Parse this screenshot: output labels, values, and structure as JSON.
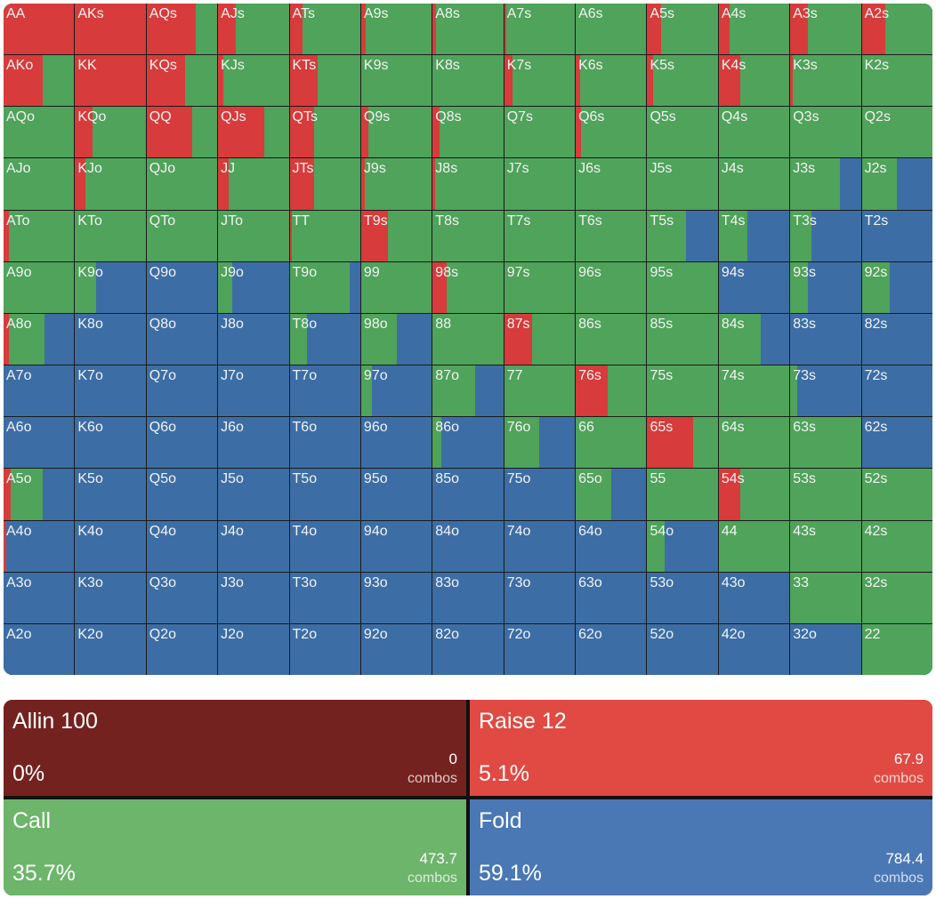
{
  "colors": {
    "raise": "#d73b3b",
    "call": "#4fa35a",
    "fold": "#3c6ea5",
    "allin": "#74221f",
    "raise_panel": "#e04a43",
    "call_panel": "#6db56a",
    "fold_panel": "#4a78b5"
  },
  "grid": [
    [
      {
        "h": "AA",
        "r": 1,
        "c": 0
      },
      {
        "h": "AKs",
        "r": 1,
        "c": 0
      },
      {
        "h": "AQs",
        "r": 0.7,
        "c": 0.3
      },
      {
        "h": "AJs",
        "r": 0.25,
        "c": 0.75
      },
      {
        "h": "ATs",
        "r": 0.18,
        "c": 0.82
      },
      {
        "h": "A9s",
        "r": 0.06,
        "c": 0.94
      },
      {
        "h": "A8s",
        "r": 0.05,
        "c": 0.95
      },
      {
        "h": "A7s",
        "r": 0.03,
        "c": 0.97
      },
      {
        "h": "A6s",
        "r": 0,
        "c": 1
      },
      {
        "h": "A5s",
        "r": 0.2,
        "c": 0.8
      },
      {
        "h": "A4s",
        "r": 0.15,
        "c": 0.85
      },
      {
        "h": "A3s",
        "r": 0.25,
        "c": 0.75
      },
      {
        "h": "A2s",
        "r": 0.33,
        "c": 0.67
      }
    ],
    [
      {
        "h": "AKo",
        "r": 0.55,
        "c": 0.45
      },
      {
        "h": "KK",
        "r": 1,
        "c": 0
      },
      {
        "h": "KQs",
        "r": 0.55,
        "c": 0.45
      },
      {
        "h": "KJs",
        "r": 0.08,
        "c": 0.92
      },
      {
        "h": "KTs",
        "r": 0.4,
        "c": 0.6
      },
      {
        "h": "K9s",
        "r": 0,
        "c": 1
      },
      {
        "h": "K8s",
        "r": 0,
        "c": 1
      },
      {
        "h": "K7s",
        "r": 0.12,
        "c": 0.88
      },
      {
        "h": "K6s",
        "r": 0.06,
        "c": 0.94
      },
      {
        "h": "K5s",
        "r": 0.08,
        "c": 0.92
      },
      {
        "h": "K4s",
        "r": 0.3,
        "c": 0.7
      },
      {
        "h": "K3s",
        "r": 0.03,
        "c": 0.97
      },
      {
        "h": "K2s",
        "r": 0,
        "c": 1
      }
    ],
    [
      {
        "h": "AQo",
        "r": 0,
        "c": 1
      },
      {
        "h": "KQo",
        "r": 0.25,
        "c": 0.75
      },
      {
        "h": "QQ",
        "r": 0.65,
        "c": 0.35
      },
      {
        "h": "QJs",
        "r": 0.65,
        "c": 0.35
      },
      {
        "h": "QTs",
        "r": 0.35,
        "c": 0.65
      },
      {
        "h": "Q9s",
        "r": 0.1,
        "c": 0.9
      },
      {
        "h": "Q8s",
        "r": 0.1,
        "c": 0.9
      },
      {
        "h": "Q7s",
        "r": 0,
        "c": 1
      },
      {
        "h": "Q6s",
        "r": 0.08,
        "c": 0.92
      },
      {
        "h": "Q5s",
        "r": 0,
        "c": 1
      },
      {
        "h": "Q4s",
        "r": 0,
        "c": 1
      },
      {
        "h": "Q3s",
        "r": 0,
        "c": 1
      },
      {
        "h": "Q2s",
        "r": 0,
        "c": 1
      }
    ],
    [
      {
        "h": "AJo",
        "r": 0,
        "c": 1
      },
      {
        "h": "KJo",
        "r": 0.15,
        "c": 0.85
      },
      {
        "h": "QJo",
        "r": 0,
        "c": 1
      },
      {
        "h": "JJ",
        "r": 0.15,
        "c": 0.85
      },
      {
        "h": "JTs",
        "r": 0.35,
        "c": 0.65
      },
      {
        "h": "J9s",
        "r": 0.05,
        "c": 0.95
      },
      {
        "h": "J8s",
        "r": 0.03,
        "c": 0.97
      },
      {
        "h": "J7s",
        "r": 0,
        "c": 1
      },
      {
        "h": "J6s",
        "r": 0,
        "c": 1
      },
      {
        "h": "J5s",
        "r": 0,
        "c": 1
      },
      {
        "h": "J4s",
        "r": 0,
        "c": 1
      },
      {
        "h": "J3s",
        "r": 0,
        "c": 0.7
      },
      {
        "h": "J2s",
        "r": 0,
        "c": 0.5
      }
    ],
    [
      {
        "h": "ATo",
        "r": 0.07,
        "c": 0.93
      },
      {
        "h": "KTo",
        "r": 0,
        "c": 1
      },
      {
        "h": "QTo",
        "r": 0,
        "c": 1
      },
      {
        "h": "JTo",
        "r": 0,
        "c": 1
      },
      {
        "h": "TT",
        "r": 0.03,
        "c": 0.97
      },
      {
        "h": "T9s",
        "r": 0.38,
        "c": 0.62
      },
      {
        "h": "T8s",
        "r": 0,
        "c": 1
      },
      {
        "h": "T7s",
        "r": 0,
        "c": 1
      },
      {
        "h": "T6s",
        "r": 0,
        "c": 1
      },
      {
        "h": "T5s",
        "r": 0,
        "c": 0.55
      },
      {
        "h": "T4s",
        "r": 0,
        "c": 0.4
      },
      {
        "h": "T3s",
        "r": 0,
        "c": 0.3
      },
      {
        "h": "T2s",
        "r": 0,
        "c": 0
      }
    ],
    [
      {
        "h": "A9o",
        "r": 0,
        "c": 1
      },
      {
        "h": "K9o",
        "r": 0,
        "c": 0.3
      },
      {
        "h": "Q9o",
        "r": 0,
        "c": 0
      },
      {
        "h": "J9o",
        "r": 0,
        "c": 0.2
      },
      {
        "h": "T9o",
        "r": 0,
        "c": 0.85
      },
      {
        "h": "99",
        "r": 0,
        "c": 1
      },
      {
        "h": "98s",
        "r": 0.2,
        "c": 0.8
      },
      {
        "h": "97s",
        "r": 0,
        "c": 1
      },
      {
        "h": "96s",
        "r": 0,
        "c": 1
      },
      {
        "h": "95s",
        "r": 0,
        "c": 1
      },
      {
        "h": "94s",
        "r": 0,
        "c": 0
      },
      {
        "h": "93s",
        "r": 0,
        "c": 0.25
      },
      {
        "h": "92s",
        "r": 0,
        "c": 0.4
      }
    ],
    [
      {
        "h": "A8o",
        "r": 0.08,
        "c": 0.5
      },
      {
        "h": "K8o",
        "r": 0,
        "c": 0
      },
      {
        "h": "Q8o",
        "r": 0,
        "c": 0
      },
      {
        "h": "J8o",
        "r": 0,
        "c": 0
      },
      {
        "h": "T8o",
        "r": 0,
        "c": 0.25
      },
      {
        "h": "98o",
        "r": 0,
        "c": 0.5
      },
      {
        "h": "88",
        "r": 0,
        "c": 1
      },
      {
        "h": "87s",
        "r": 0.4,
        "c": 0.6
      },
      {
        "h": "86s",
        "r": 0,
        "c": 1
      },
      {
        "h": "85s",
        "r": 0,
        "c": 1
      },
      {
        "h": "84s",
        "r": 0,
        "c": 0.6
      },
      {
        "h": "83s",
        "r": 0,
        "c": 0
      },
      {
        "h": "82s",
        "r": 0,
        "c": 0
      }
    ],
    [
      {
        "h": "A7o",
        "r": 0,
        "c": 0
      },
      {
        "h": "K7o",
        "r": 0,
        "c": 0
      },
      {
        "h": "Q7o",
        "r": 0,
        "c": 0
      },
      {
        "h": "J7o",
        "r": 0,
        "c": 0
      },
      {
        "h": "T7o",
        "r": 0,
        "c": 0
      },
      {
        "h": "97o",
        "r": 0,
        "c": 0.15
      },
      {
        "h": "87o",
        "r": 0,
        "c": 0.6
      },
      {
        "h": "77",
        "r": 0,
        "c": 1
      },
      {
        "h": "76s",
        "r": 0.45,
        "c": 0.55
      },
      {
        "h": "75s",
        "r": 0,
        "c": 1
      },
      {
        "h": "74s",
        "r": 0,
        "c": 1
      },
      {
        "h": "73s",
        "r": 0,
        "c": 0.1
      },
      {
        "h": "72s",
        "r": 0,
        "c": 0
      }
    ],
    [
      {
        "h": "A6o",
        "r": 0,
        "c": 0
      },
      {
        "h": "K6o",
        "r": 0,
        "c": 0
      },
      {
        "h": "Q6o",
        "r": 0,
        "c": 0
      },
      {
        "h": "J6o",
        "r": 0,
        "c": 0
      },
      {
        "h": "T6o",
        "r": 0,
        "c": 0
      },
      {
        "h": "96o",
        "r": 0,
        "c": 0
      },
      {
        "h": "86o",
        "r": 0,
        "c": 0.12
      },
      {
        "h": "76o",
        "r": 0,
        "c": 0.5
      },
      {
        "h": "66",
        "r": 0,
        "c": 1
      },
      {
        "h": "65s",
        "r": 0.65,
        "c": 0.35
      },
      {
        "h": "64s",
        "r": 0,
        "c": 1
      },
      {
        "h": "63s",
        "r": 0,
        "c": 1
      },
      {
        "h": "62s",
        "r": 0,
        "c": 0
      }
    ],
    [
      {
        "h": "A5o",
        "r": 0.1,
        "c": 0.45
      },
      {
        "h": "K5o",
        "r": 0,
        "c": 0
      },
      {
        "h": "Q5o",
        "r": 0,
        "c": 0
      },
      {
        "h": "J5o",
        "r": 0,
        "c": 0
      },
      {
        "h": "T5o",
        "r": 0,
        "c": 0
      },
      {
        "h": "95o",
        "r": 0,
        "c": 0
      },
      {
        "h": "85o",
        "r": 0,
        "c": 0
      },
      {
        "h": "75o",
        "r": 0,
        "c": 0
      },
      {
        "h": "65o",
        "r": 0,
        "c": 0.5
      },
      {
        "h": "55",
        "r": 0,
        "c": 1
      },
      {
        "h": "54s",
        "r": 0.3,
        "c": 0.7
      },
      {
        "h": "53s",
        "r": 0,
        "c": 1
      },
      {
        "h": "52s",
        "r": 0,
        "c": 1
      }
    ],
    [
      {
        "h": "A4o",
        "r": 0.04,
        "c": 0
      },
      {
        "h": "K4o",
        "r": 0,
        "c": 0
      },
      {
        "h": "Q4o",
        "r": 0,
        "c": 0
      },
      {
        "h": "J4o",
        "r": 0,
        "c": 0
      },
      {
        "h": "T4o",
        "r": 0,
        "c": 0
      },
      {
        "h": "94o",
        "r": 0,
        "c": 0
      },
      {
        "h": "84o",
        "r": 0,
        "c": 0
      },
      {
        "h": "74o",
        "r": 0,
        "c": 0
      },
      {
        "h": "64o",
        "r": 0,
        "c": 0
      },
      {
        "h": "54o",
        "r": 0,
        "c": 0.25
      },
      {
        "h": "44",
        "r": 0,
        "c": 1
      },
      {
        "h": "43s",
        "r": 0,
        "c": 1
      },
      {
        "h": "42s",
        "r": 0,
        "c": 1
      }
    ],
    [
      {
        "h": "A3o",
        "r": 0,
        "c": 0
      },
      {
        "h": "K3o",
        "r": 0,
        "c": 0
      },
      {
        "h": "Q3o",
        "r": 0,
        "c": 0
      },
      {
        "h": "J3o",
        "r": 0,
        "c": 0
      },
      {
        "h": "T3o",
        "r": 0,
        "c": 0
      },
      {
        "h": "93o",
        "r": 0,
        "c": 0
      },
      {
        "h": "83o",
        "r": 0,
        "c": 0
      },
      {
        "h": "73o",
        "r": 0,
        "c": 0
      },
      {
        "h": "63o",
        "r": 0,
        "c": 0
      },
      {
        "h": "53o",
        "r": 0,
        "c": 0
      },
      {
        "h": "43o",
        "r": 0,
        "c": 0
      },
      {
        "h": "33",
        "r": 0,
        "c": 1
      },
      {
        "h": "32s",
        "r": 0,
        "c": 1
      }
    ],
    [
      {
        "h": "A2o",
        "r": 0,
        "c": 0
      },
      {
        "h": "K2o",
        "r": 0,
        "c": 0
      },
      {
        "h": "Q2o",
        "r": 0,
        "c": 0
      },
      {
        "h": "J2o",
        "r": 0,
        "c": 0
      },
      {
        "h": "T2o",
        "r": 0,
        "c": 0
      },
      {
        "h": "92o",
        "r": 0,
        "c": 0
      },
      {
        "h": "82o",
        "r": 0,
        "c": 0
      },
      {
        "h": "72o",
        "r": 0,
        "c": 0
      },
      {
        "h": "62o",
        "r": 0,
        "c": 0
      },
      {
        "h": "52o",
        "r": 0,
        "c": 0
      },
      {
        "h": "42o",
        "r": 0,
        "c": 0
      },
      {
        "h": "32o",
        "r": 0,
        "c": 0
      },
      {
        "h": "22",
        "r": 0,
        "c": 1
      }
    ]
  ],
  "summary": {
    "allin": {
      "name": "Allin 100",
      "percent": "0%",
      "combos": "0",
      "unit": "combos"
    },
    "raise": {
      "name": "Raise 12",
      "percent": "5.1%",
      "combos": "67.9",
      "unit": "combos"
    },
    "call": {
      "name": "Call",
      "percent": "35.7%",
      "combos": "473.7",
      "unit": "combos"
    },
    "fold": {
      "name": "Fold",
      "percent": "59.1%",
      "combos": "784.4",
      "unit": "combos"
    }
  }
}
